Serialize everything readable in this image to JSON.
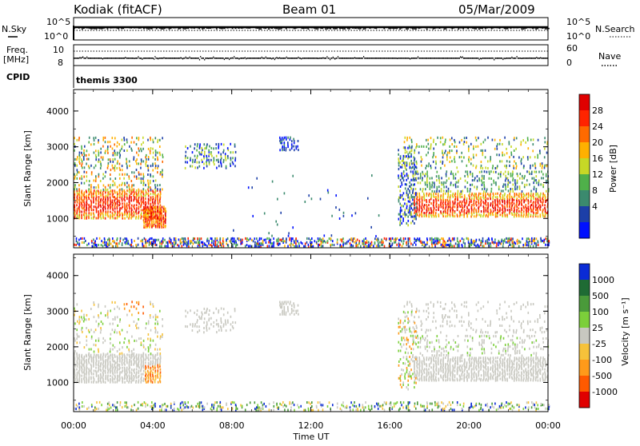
{
  "header": {
    "station": "Kodiak (fitACF)",
    "beam": "Beam 01",
    "date": "05/Mar/2009"
  },
  "noise_panel": {
    "left_label": "N.Sky",
    "left_ticks": [
      "10^5",
      "10^0"
    ],
    "right_label": "N.Search",
    "right_ticks": [
      "10^5",
      "10^0"
    ]
  },
  "freq_panel": {
    "left_label_1": "Freq.",
    "left_label_2": "[MHz]",
    "left_ticks": [
      "10",
      "8"
    ],
    "right_label": "Nave",
    "right_ticks": [
      "60",
      "0"
    ]
  },
  "cpid": {
    "label": "CPID",
    "value": "themis 3300"
  },
  "x_axis": {
    "title": "Time UT",
    "ticks": [
      "00:00",
      "04:00",
      "08:00",
      "12:00",
      "16:00",
      "20:00",
      "00:00"
    ]
  },
  "colors": {
    "power": [
      "#0010ff",
      "#1c3fa8",
      "#3b8a6e",
      "#4fb04a",
      "#c6d826",
      "#ffb000",
      "#ff6a00",
      "#ff2400",
      "#e00000"
    ],
    "velocity": [
      "#0a2bd6",
      "#1f6b34",
      "#4a9a3a",
      "#7ccf3a",
      "#c8c8c0",
      "#f6c23a",
      "#ff9a1a",
      "#ff5a00",
      "#e00000"
    ],
    "ground_scatter": "#c8c8c0"
  },
  "chart_data": [
    {
      "type": "heatmap",
      "title": "Power",
      "ylabel": "Slant Range [km]",
      "xlabel": "Time UT",
      "x_range_hours": [
        0,
        24
      ],
      "ylim": [
        180,
        4600
      ],
      "yticks": [
        "1000",
        "2000",
        "3000",
        "4000"
      ],
      "colorbar_label": "Power [dB]",
      "colorbar_ticks": [
        "4",
        "8",
        "12",
        "16",
        "20",
        "24",
        "28"
      ]
    },
    {
      "type": "heatmap",
      "title": "Velocity",
      "ylabel": "Slant Range [km]",
      "xlabel": "Time UT",
      "x_range_hours": [
        0,
        24
      ],
      "ylim": [
        180,
        4600
      ],
      "yticks": [
        "1000",
        "2000",
        "3000",
        "4000"
      ],
      "colorbar_label": "Velocity [m s⁻¹]",
      "colorbar_ticks": [
        "1000",
        "500",
        "100",
        "25",
        "-25",
        "-100",
        "-500",
        "-1000"
      ]
    }
  ]
}
